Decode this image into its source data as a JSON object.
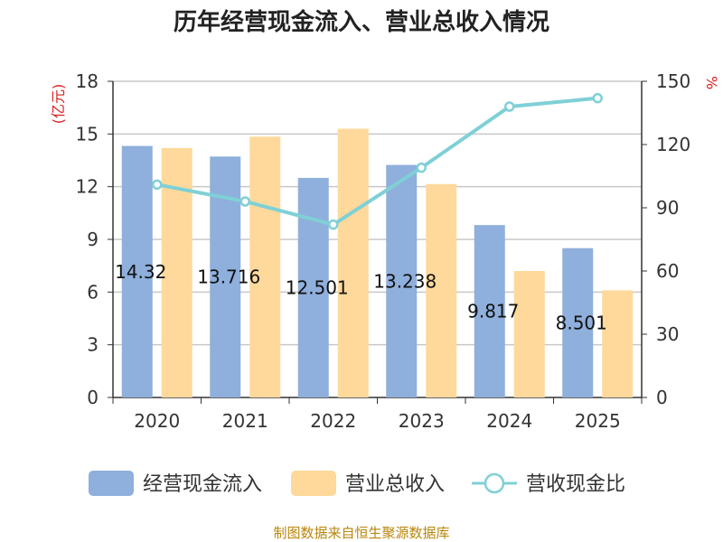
{
  "chart_data": {
    "type": "bar+line",
    "title": "历年经营现金流入、营业总收入情况",
    "categories": [
      "2020",
      "2021",
      "2022",
      "2023",
      "2024",
      "2025"
    ],
    "series": [
      {
        "name": "经营现金流入",
        "type": "bar",
        "axis": "left",
        "color": "#8fafdc",
        "values": [
          14.32,
          13.716,
          12.501,
          13.238,
          9.817,
          8.501
        ],
        "labels": [
          "14.32",
          "13.716",
          "12.501",
          "13.238",
          "9.817",
          "8.501"
        ]
      },
      {
        "name": "营业总收入",
        "type": "bar",
        "axis": "left",
        "color": "#fed99b",
        "values": [
          14.2,
          14.85,
          15.3,
          12.15,
          7.2,
          6.1
        ]
      },
      {
        "name": "营收现金比",
        "type": "line",
        "axis": "right",
        "color": "#7fd0d6",
        "values": [
          101,
          93,
          82,
          109,
          138,
          142
        ]
      }
    ],
    "left_axis": {
      "label": "(亿元)",
      "min": 0,
      "max": 18,
      "ticks": [
        0,
        3,
        6,
        9,
        12,
        15,
        18
      ]
    },
    "right_axis": {
      "label": "%",
      "min": 0,
      "max": 150,
      "ticks": [
        0,
        30,
        60,
        90,
        120,
        150
      ]
    },
    "legend": "bottom",
    "grid": true
  },
  "source": "制图数据来自恒生聚源数据库"
}
